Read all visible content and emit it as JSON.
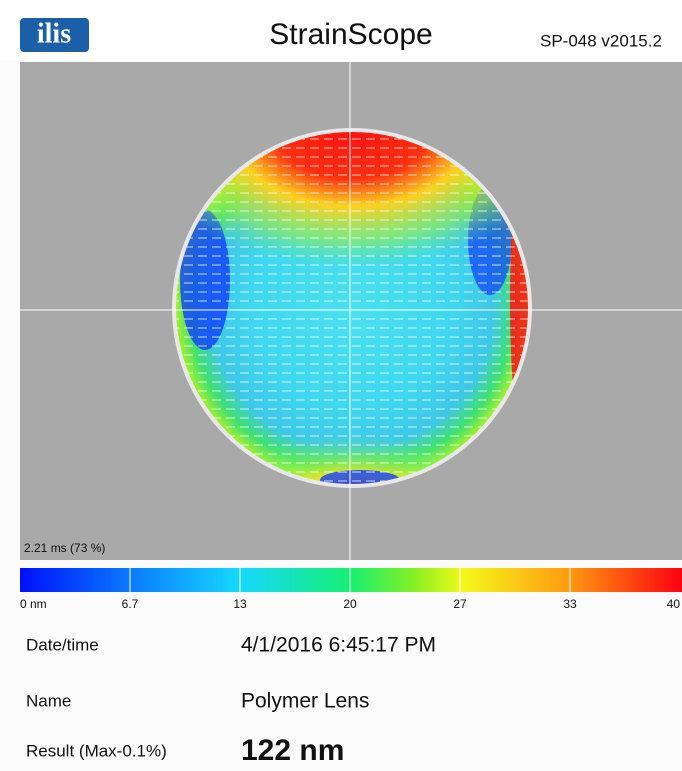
{
  "header": {
    "logo": "ilis",
    "title": "StrainScope",
    "version": "SP-048 v2015.2"
  },
  "image": {
    "overlay": "2.21 ms (73 %)"
  },
  "colorbar": {
    "labels": [
      "0 nm",
      "6.7",
      "13",
      "20",
      "27",
      "33",
      "40"
    ]
  },
  "info": {
    "rows": [
      {
        "label": "Date/time",
        "value": "4/1/2016 6:45:17 PM"
      },
      {
        "label": "Name",
        "value": "Polymer Lens"
      },
      {
        "label": "Result (Max-0.1%)",
        "value": "122 nm"
      }
    ]
  }
}
